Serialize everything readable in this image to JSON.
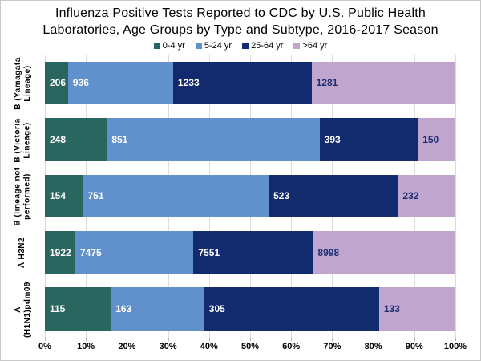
{
  "title_lines": [
    "Influenza Positive Tests Reported to CDC by U.S. Public Health",
    "Laboratories, Age Groups by Type and Subtype, 2016-2017 Season"
  ],
  "colors": {
    "age_0_4": "#2a6660",
    "age_5_24": "#6191cc",
    "age_25_64": "#122a6e",
    "age_over_64": "#c0a6cf",
    "label_on_light": "#1c2d6e",
    "label_on_dark": "#ffffff",
    "gridline": "#dcdcdc"
  },
  "chart_data": {
    "type": "bar",
    "orientation": "horizontal",
    "stacked": true,
    "stacking": "100%",
    "title": "Influenza Positive Tests Reported to CDC by U.S. Public Health Laboratories, Age Groups by Type and Subtype, 2016-2017 Season",
    "categories": [
      "B (Yamagata\nLineage)",
      "B (Victoria\nLineage)",
      "B (lineage not\nperformed)",
      "A H3N2",
      "A\n(H1N1)pdm09"
    ],
    "series": [
      {
        "name": "0-4 yr",
        "color": "#2a6660",
        "label_color": "#ffffff",
        "values": [
          206,
          248,
          154,
          1922,
          115
        ]
      },
      {
        "name": "5-24 yr",
        "color": "#6191cc",
        "label_color": "#ffffff",
        "values": [
          936,
          851,
          751,
          7475,
          163
        ]
      },
      {
        "name": "25-64 yr",
        "color": "#122a6e",
        "label_color": "#ffffff",
        "values": [
          1233,
          393,
          523,
          7551,
          305
        ]
      },
      {
        "name": ">64 yr",
        "color": "#c0a6cf",
        "label_color": "#1c2d6e",
        "values": [
          1281,
          150,
          232,
          8998,
          133
        ]
      }
    ],
    "x_ticks": [
      "0%",
      "10%",
      "20%",
      "30%",
      "40%",
      "50%",
      "60%",
      "70%",
      "80%",
      "90%",
      "100%"
    ],
    "xlim": [
      0,
      100
    ],
    "grid": "vertical",
    "legend_position": "top"
  }
}
